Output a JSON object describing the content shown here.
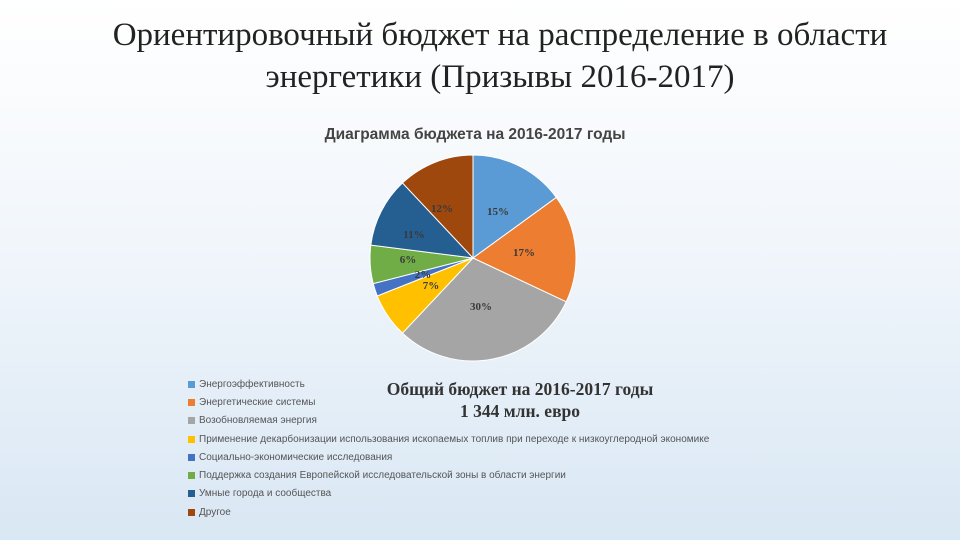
{
  "slide": {
    "title_line1": "Ориентировочный бюджет на распределение в области",
    "title_line2": "энергетики (Призывы 2016-2017)"
  },
  "chart_data": {
    "type": "pie",
    "title": "Диаграмма бюджета на 2016-2017 годы",
    "slices": [
      {
        "label": "Энергоэффективность",
        "value": 15,
        "data_label": "15%",
        "color": "#5b9bd5"
      },
      {
        "label": "Энергетические системы",
        "value": 17,
        "data_label": "17%",
        "color": "#ed7d31"
      },
      {
        "label": "Возобновляемая энергия",
        "value": 30,
        "data_label": "30%",
        "color": "#a5a5a5"
      },
      {
        "label": "Применение декарбонизации использования ископаемых топлив при переходе к низкоуглеродной экономике",
        "value": 7,
        "data_label": "7%",
        "color": "#ffc000"
      },
      {
        "label": "Социально-экономические исследования",
        "value": 2,
        "data_label": "2%",
        "color": "#4472c4"
      },
      {
        "label": "Поддержка создания Европейской исследовательской зоны в области энергии",
        "value": 6,
        "data_label": "6%",
        "color": "#70ad47"
      },
      {
        "label": "Умные города и сообщества",
        "value": 11,
        "data_label": "11%",
        "color": "#255e91"
      },
      {
        "label": "Другое",
        "value": 12,
        "data_label": "12%",
        "color": "#9e480e"
      }
    ],
    "legend_placement": "bottom"
  },
  "summary": {
    "line1": "Общий бюджет на 2016-2017 годы",
    "line2": "1 344 млн. евро"
  }
}
